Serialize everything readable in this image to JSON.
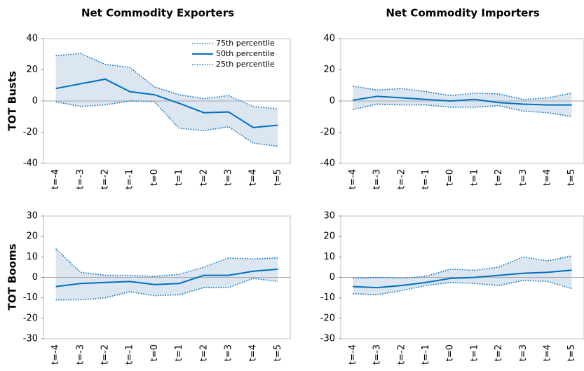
{
  "column_titles": [
    "Net Commodity Exporters",
    "Net Commodity Importers"
  ],
  "row_titles": [
    "TOT Busts",
    "TOT Booms"
  ],
  "chart_data": [
    {
      "type": "band_line",
      "categories": [
        "t=-4",
        "t=-3",
        "t=-2",
        "t=-1",
        "t=0",
        "t=1",
        "t=2",
        "t=3",
        "t=4",
        "t=5"
      ],
      "ylim": [
        -40,
        40
      ],
      "yticks": [
        -40,
        -20,
        0,
        20,
        40
      ],
      "zero_line": true,
      "band_color": "#dce6f1",
      "legend": "upper right",
      "series": [
        {
          "name": "75th percentile",
          "color": "#0070c0",
          "style": "dotted",
          "values": [
            29,
            30.5,
            23.5,
            21.5,
            9,
            4,
            1.5,
            3.5,
            -3.5,
            -5
          ]
        },
        {
          "name": "50th percentile",
          "color": "#0070c0",
          "style": "solid",
          "values": [
            8,
            11,
            14,
            6,
            4,
            -1.5,
            -7.5,
            -7,
            -17,
            -15.5
          ]
        },
        {
          "name": "25th percentile",
          "color": "#0070c0",
          "style": "dotted",
          "values": [
            -0.5,
            -3.5,
            -2.5,
            0,
            -0.5,
            -17.5,
            -19,
            -16.5,
            -27,
            -29
          ]
        }
      ]
    },
    {
      "type": "band_line",
      "categories": [
        "t=-4",
        "t=-3",
        "t=-2",
        "t=-1",
        "t=0",
        "t=1",
        "t=2",
        "t=3",
        "t=4",
        "t=5"
      ],
      "ylim": [
        -40,
        40
      ],
      "yticks": [
        -40,
        -20,
        0,
        20,
        40
      ],
      "zero_line": true,
      "band_color": "#dce6f1",
      "series": [
        {
          "color": "#0070c0",
          "style": "dotted",
          "values": [
            9.5,
            7,
            8,
            6,
            3.5,
            5,
            4.5,
            1,
            2,
            5
          ]
        },
        {
          "color": "#0070c0",
          "style": "solid",
          "values": [
            0.5,
            3,
            2,
            1,
            0,
            1,
            -1,
            -2,
            -2.5,
            -2.5
          ]
        },
        {
          "color": "#0070c0",
          "style": "dotted",
          "values": [
            -5.5,
            -2,
            -2.5,
            -2.5,
            -4,
            -4,
            -3,
            -6.5,
            -7.5,
            -10
          ]
        }
      ]
    },
    {
      "type": "band_line",
      "categories": [
        "t=-4",
        "t=-3",
        "t=-2",
        "t=-1",
        "t=0",
        "t=1",
        "t=2",
        "t=3",
        "t=4",
        "t=5"
      ],
      "ylim": [
        -30,
        30
      ],
      "yticks": [
        -30,
        -20,
        -10,
        0,
        10,
        20,
        30
      ],
      "zero_line": true,
      "band_color": "#dce6f1",
      "series": [
        {
          "color": "#0070c0",
          "style": "dotted",
          "values": [
            14,
            2.5,
            1,
            1,
            0.5,
            1.5,
            5,
            9.5,
            9,
            9.5
          ]
        },
        {
          "color": "#0070c0",
          "style": "solid",
          "values": [
            -4.5,
            -3,
            -2.5,
            -2,
            -3.5,
            -3,
            1,
            1,
            3,
            4
          ]
        },
        {
          "color": "#0070c0",
          "style": "dotted",
          "values": [
            -11,
            -11,
            -10,
            -7,
            -9,
            -8.5,
            -5,
            -5,
            -0.5,
            -2
          ]
        }
      ]
    },
    {
      "type": "band_line",
      "categories": [
        "t=-4",
        "t=-3",
        "t=-2",
        "t=-1",
        "t=0",
        "t=1",
        "t=2",
        "t=3",
        "t=4",
        "t=5"
      ],
      "ylim": [
        -30,
        30
      ],
      "yticks": [
        -30,
        -20,
        -10,
        0,
        10,
        20,
        30
      ],
      "zero_line": true,
      "band_color": "#dce6f1",
      "series": [
        {
          "color": "#0070c0",
          "style": "dotted",
          "values": [
            -0.5,
            0,
            -0.5,
            0.5,
            4,
            3.5,
            5,
            10,
            8,
            10.5
          ]
        },
        {
          "color": "#0070c0",
          "style": "solid",
          "values": [
            -4.5,
            -5,
            -4,
            -2.5,
            -0.5,
            0,
            1,
            2,
            2.5,
            3.5
          ]
        },
        {
          "color": "#0070c0",
          "style": "dotted",
          "values": [
            -8,
            -8.5,
            -6.5,
            -4,
            -2.5,
            -3,
            -4,
            -1.5,
            -2,
            -5.5
          ]
        }
      ]
    }
  ]
}
